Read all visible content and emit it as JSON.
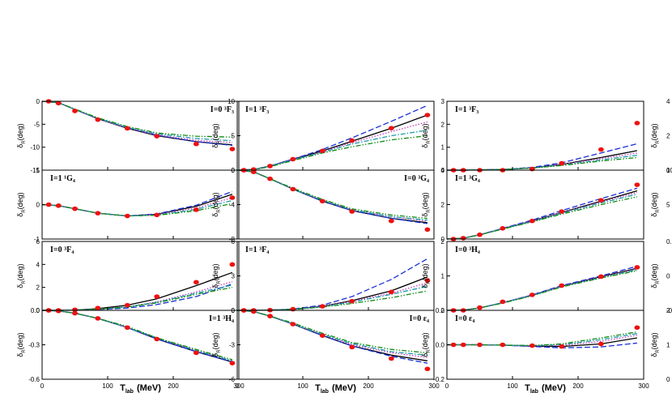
{
  "chart_data": {
    "type": "line",
    "xlabel_main": "T",
    "xlabel_sub": "lab",
    "xlabel_unit": "(MeV)",
    "ylabel_main": "δ",
    "ylabel_sub": "R",
    "ylabel_unit": "(deg)",
    "x_ticks": [
      "0",
      "100",
      "200",
      "300"
    ],
    "xlim": [
      0,
      300
    ],
    "series_styles": [
      {
        "id": "solid",
        "color": "#000000",
        "dash": ""
      },
      {
        "id": "dash",
        "color": "#1a2fd6",
        "dash": "7,3"
      },
      {
        "id": "dot",
        "color": "#c23fbf",
        "dash": "1.5,2"
      },
      {
        "id": "dashdot",
        "color": "#1c9ba6",
        "dash": "6,2,1.5,2"
      },
      {
        "id": "dashdotdot",
        "color": "#138a13",
        "dash": "6,2,1.5,2,1.5,2"
      }
    ],
    "point_color": "#ee1111",
    "panels": [
      {
        "row": 0,
        "col": 0,
        "label": "I=0 ³F₃",
        "label_pos": "right",
        "ylim": [
          -15,
          0
        ],
        "y_ticks": [
          "-15",
          "-10",
          "-5",
          "0"
        ],
        "points_x": [
          10,
          25,
          50,
          85,
          130,
          175,
          235,
          290
        ],
        "points_y": [
          0,
          -0.4,
          -2.1,
          -4.0,
          -5.9,
          -7.6,
          -9.3,
          -10.4
        ],
        "curves": {
          "solid": [
            0,
            -0.3,
            -1.8,
            -3.8,
            -5.9,
            -7.5,
            -8.8,
            -9.5
          ],
          "dash": [
            0,
            -0.3,
            -1.8,
            -3.8,
            -5.8,
            -7.4,
            -8.8,
            -9.6
          ],
          "dot": [
            0,
            -0.3,
            -1.8,
            -3.8,
            -5.8,
            -7.3,
            -8.5,
            -9.0
          ],
          "dashdot": [
            0,
            -0.3,
            -1.8,
            -3.7,
            -5.7,
            -7.1,
            -8.1,
            -8.6
          ],
          "dashdotdot": [
            0,
            -0.3,
            -1.7,
            -3.6,
            -5.5,
            -6.9,
            -7.6,
            -7.8
          ]
        }
      },
      {
        "row": 0,
        "col": 1,
        "label": "I=1 ³F₃",
        "label_pos": "left",
        "ylim": [
          0,
          10
        ],
        "y_ticks": [
          "0",
          "5",
          "10"
        ],
        "points_x": [
          10,
          25,
          50,
          85,
          130,
          175,
          235,
          290
        ],
        "points_y": [
          0,
          0.1,
          0.6,
          1.6,
          2.8,
          4.3,
          6.1,
          8.0
        ],
        "curves": {
          "solid": [
            0,
            0.1,
            0.6,
            1.6,
            2.8,
            4.2,
            6.1,
            8.0
          ],
          "dash": [
            0,
            0.1,
            0.6,
            1.6,
            3.0,
            4.7,
            7.1,
            9.4
          ],
          "dot": [
            0,
            0.1,
            0.6,
            1.5,
            2.7,
            4.0,
            5.6,
            7.0
          ],
          "dashdot": [
            0,
            0.1,
            0.6,
            1.5,
            2.6,
            3.8,
            5.0,
            5.8
          ],
          "dashdotdot": [
            0,
            0.1,
            0.5,
            1.4,
            2.5,
            3.4,
            4.4,
            5.0
          ]
        }
      },
      {
        "row": 0,
        "col": 2,
        "label": "I=1 ³F₃",
        "label_pos": "left",
        "ylim": [
          0,
          3
        ],
        "y_ticks": [
          "0",
          "1",
          "2",
          "3"
        ],
        "points_x": [
          10,
          25,
          50,
          85,
          130,
          175,
          235,
          290
        ],
        "points_y": [
          0,
          0,
          0,
          0,
          0.05,
          0.3,
          0.9,
          2.05
        ],
        "curves": {
          "solid": [
            0,
            0,
            0.01,
            0.03,
            0.1,
            0.25,
            0.55,
            0.85
          ],
          "dash": [
            0,
            0,
            0.01,
            0.03,
            0.12,
            0.32,
            0.75,
            1.15
          ],
          "dot": [
            0,
            0,
            0.01,
            0.03,
            0.1,
            0.25,
            0.5,
            0.75
          ],
          "dashdot": [
            0,
            0,
            0.01,
            0.03,
            0.1,
            0.22,
            0.45,
            0.65
          ],
          "dashdotdot": [
            0,
            0,
            0.01,
            0.03,
            0.09,
            0.2,
            0.4,
            0.55
          ]
        }
      },
      {
        "row": 1,
        "col": 0,
        "label": "I=1 ¹G₄",
        "label_pos": "left",
        "ylim": [
          -1,
          1
        ],
        "y_ticks": [
          "-1",
          "0",
          "1"
        ],
        "points_x": [
          10,
          25,
          50,
          85,
          130,
          175,
          235,
          290
        ],
        "points_y": [
          0,
          -0.03,
          -0.12,
          -0.25,
          -0.33,
          -0.3,
          -0.15,
          0.2
        ],
        "curves": {
          "solid": [
            0,
            -0.03,
            -0.12,
            -0.25,
            -0.33,
            -0.28,
            -0.05,
            0.3
          ],
          "dash": [
            0,
            -0.03,
            -0.12,
            -0.25,
            -0.33,
            -0.27,
            -0.02,
            0.38
          ],
          "dot": [
            0,
            -0.03,
            -0.12,
            -0.25,
            -0.33,
            -0.29,
            -0.1,
            0.2
          ],
          "dashdot": [
            0,
            -0.03,
            -0.12,
            -0.25,
            -0.33,
            -0.3,
            -0.14,
            0.12
          ],
          "dashdotdot": [
            0,
            -0.03,
            -0.12,
            -0.25,
            -0.33,
            -0.31,
            -0.18,
            0.03
          ]
        }
      },
      {
        "row": 1,
        "col": 1,
        "label": "I=0 ³G₄",
        "label_pos": "right",
        "ylim": [
          -8,
          0
        ],
        "y_ticks": [
          "-8",
          "-4",
          "0"
        ],
        "points_x": [
          10,
          25,
          50,
          85,
          130,
          175,
          235,
          290
        ],
        "points_y": [
          0,
          -0.2,
          -1.0,
          -2.2,
          -3.6,
          -4.8,
          -5.9,
          -6.9
        ],
        "curves": {
          "solid": [
            0,
            -0.2,
            -1.0,
            -2.2,
            -3.6,
            -4.7,
            -5.6,
            -6.1
          ],
          "dash": [
            0,
            -0.2,
            -1.0,
            -2.2,
            -3.6,
            -4.7,
            -5.6,
            -6.2
          ],
          "dot": [
            0,
            -0.2,
            -1.0,
            -2.2,
            -3.5,
            -4.6,
            -5.4,
            -5.9
          ],
          "dashdot": [
            0,
            -0.2,
            -1.0,
            -2.2,
            -3.5,
            -4.6,
            -5.4,
            -5.8
          ],
          "dashdotdot": [
            0,
            -0.2,
            -1.0,
            -2.1,
            -3.4,
            -4.5,
            -5.2,
            -5.6
          ]
        }
      },
      {
        "row": 1,
        "col": 2,
        "label": "I=1 ³G₄",
        "label_pos": "left",
        "ylim": [
          0,
          4
        ],
        "y_ticks": [
          "0",
          "2",
          "4"
        ],
        "points_x": [
          10,
          25,
          50,
          85,
          130,
          175,
          235,
          290
        ],
        "points_y": [
          0,
          0.05,
          0.25,
          0.62,
          1.05,
          1.6,
          2.25,
          3.15
        ],
        "curves": {
          "solid": [
            0,
            0.05,
            0.25,
            0.6,
            1.05,
            1.55,
            2.2,
            2.8
          ],
          "dash": [
            0,
            0.05,
            0.25,
            0.62,
            1.1,
            1.65,
            2.35,
            2.95
          ],
          "dot": [
            0,
            0.05,
            0.25,
            0.6,
            1.05,
            1.55,
            2.15,
            2.7
          ],
          "dashdot": [
            0,
            0.05,
            0.25,
            0.6,
            1.02,
            1.5,
            2.1,
            2.6
          ],
          "dashdotdot": [
            0,
            0.05,
            0.24,
            0.58,
            1.0,
            1.45,
            2.0,
            2.45
          ]
        }
      },
      {
        "row": 2,
        "col": 0,
        "label": "I=0 ³F₄",
        "label_pos": "left",
        "ylim": [
          0,
          6
        ],
        "y_ticks": [
          "0",
          "2",
          "4",
          "6"
        ],
        "points_x": [
          10,
          25,
          50,
          85,
          130,
          175,
          235,
          290
        ],
        "points_y": [
          0,
          0,
          0.05,
          0.2,
          0.45,
          1.2,
          2.45,
          4.0
        ],
        "curves": {
          "solid": [
            0,
            0,
            0.03,
            0.15,
            0.45,
            1.0,
            2.15,
            3.3
          ],
          "dash": [
            0,
            0,
            0.02,
            0.08,
            0.2,
            0.5,
            1.2,
            2.3
          ],
          "dot": [
            0,
            0,
            0.02,
            0.1,
            0.3,
            0.75,
            1.6,
            2.5
          ],
          "dashdot": [
            0,
            0,
            0.02,
            0.1,
            0.3,
            0.7,
            1.5,
            2.2
          ],
          "dashdotdot": [
            0,
            0,
            0.02,
            0.1,
            0.3,
            0.65,
            1.4,
            2.0
          ]
        }
      },
      {
        "row": 2,
        "col": 1,
        "label": "I=1 ³F₄",
        "label_pos": "left",
        "ylim": [
          0,
          6
        ],
        "y_ticks": [
          "0",
          "3",
          "6"
        ],
        "points_x": [
          10,
          25,
          50,
          85,
          130,
          175,
          235,
          290
        ],
        "points_y": [
          0,
          0,
          0.02,
          0.1,
          0.35,
          0.8,
          1.6,
          2.6
        ],
        "curves": {
          "solid": [
            0,
            0,
            0.02,
            0.1,
            0.35,
            0.85,
            1.7,
            2.9
          ],
          "dash": [
            0,
            0,
            0.02,
            0.12,
            0.45,
            1.2,
            2.7,
            4.5
          ],
          "dot": [
            0,
            0,
            0.02,
            0.1,
            0.35,
            0.8,
            1.5,
            2.4
          ],
          "dashdot": [
            0,
            0,
            0.02,
            0.1,
            0.32,
            0.72,
            1.4,
            2.1
          ],
          "dashdotdot": [
            0,
            0,
            0.02,
            0.08,
            0.28,
            0.6,
            1.1,
            1.7
          ]
        }
      },
      {
        "row": 2,
        "col": 2,
        "label": "I=0 ³H₄",
        "label_pos": "left",
        "ylim": [
          0,
          2
        ],
        "y_ticks": [
          "0",
          "1",
          "2"
        ],
        "points_x": [
          10,
          25,
          50,
          85,
          130,
          175,
          235,
          290
        ],
        "points_y": [
          0,
          0,
          0.08,
          0.25,
          0.45,
          0.72,
          0.98,
          1.25
        ],
        "curves": {
          "solid": [
            0,
            0.01,
            0.07,
            0.22,
            0.44,
            0.7,
            0.98,
            1.22
          ],
          "dash": [
            0,
            0.01,
            0.07,
            0.22,
            0.45,
            0.72,
            1.0,
            1.28
          ],
          "dot": [
            0,
            0.01,
            0.07,
            0.22,
            0.44,
            0.7,
            0.97,
            1.2
          ],
          "dashdot": [
            0,
            0.01,
            0.07,
            0.22,
            0.43,
            0.69,
            0.95,
            1.18
          ],
          "dashdotdot": [
            0,
            0.01,
            0.07,
            0.21,
            0.42,
            0.68,
            0.94,
            1.15
          ]
        }
      },
      {
        "row": 3,
        "col": 0,
        "label": "I=1 ³H₄",
        "label_pos": "right",
        "ylim": [
          -0.6,
          0
        ],
        "y_ticks": [
          "-0.6",
          "-0.3",
          "0.0"
        ],
        "points_x": [
          10,
          25,
          50,
          85,
          130,
          175,
          235,
          290
        ],
        "points_y": [
          0,
          -0.005,
          -0.025,
          -0.07,
          -0.15,
          -0.25,
          -0.37,
          -0.46
        ],
        "curves": {
          "solid": [
            0,
            -0.005,
            -0.025,
            -0.07,
            -0.15,
            -0.25,
            -0.36,
            -0.45
          ],
          "dash": [
            0,
            -0.005,
            -0.025,
            -0.07,
            -0.15,
            -0.25,
            -0.36,
            -0.45
          ],
          "dot": [
            0,
            -0.005,
            -0.025,
            -0.07,
            -0.15,
            -0.24,
            -0.35,
            -0.44
          ],
          "dashdot": [
            0,
            -0.005,
            -0.025,
            -0.07,
            -0.15,
            -0.24,
            -0.35,
            -0.44
          ],
          "dashdotdot": [
            0,
            -0.005,
            -0.025,
            -0.07,
            -0.14,
            -0.24,
            -0.34,
            -0.43
          ]
        }
      },
      {
        "row": 3,
        "col": 1,
        "label": "I=0 ε₄",
        "label_pos": "right",
        "ylim": [
          -6,
          0
        ],
        "y_ticks": [
          "-6",
          "-3",
          "0"
        ],
        "points_x": [
          10,
          25,
          50,
          85,
          130,
          175,
          235,
          290
        ],
        "points_y": [
          0,
          -0.1,
          -0.5,
          -1.2,
          -2.2,
          -3.2,
          -4.2,
          -5.1
        ],
        "curves": {
          "solid": [
            0,
            -0.1,
            -0.5,
            -1.2,
            -2.2,
            -3.1,
            -3.9,
            -4.4
          ],
          "dash": [
            0,
            -0.1,
            -0.5,
            -1.2,
            -2.2,
            -3.1,
            -4.0,
            -4.6
          ],
          "dot": [
            0,
            -0.1,
            -0.5,
            -1.2,
            -2.1,
            -3.0,
            -3.7,
            -4.1
          ],
          "dashdot": [
            0,
            -0.1,
            -0.5,
            -1.2,
            -2.1,
            -2.9,
            -3.6,
            -3.9
          ],
          "dashdotdot": [
            0,
            -0.1,
            -0.5,
            -1.1,
            -2.0,
            -2.8,
            -3.4,
            -3.7
          ]
        }
      },
      {
        "row": 3,
        "col": 2,
        "label": "I=0 ε₄",
        "label_pos": "left",
        "ylim": [
          -0.2,
          0.2
        ],
        "y_ticks": [
          "-0.2",
          "0.0",
          "0.2"
        ],
        "points_x": [
          10,
          25,
          50,
          85,
          130,
          175,
          235,
          290
        ],
        "points_y": [
          0,
          0,
          0,
          0,
          -0.005,
          -0.01,
          0.005,
          0.1
        ],
        "curves": {
          "solid": [
            0,
            0,
            0,
            -0.002,
            -0.008,
            -0.01,
            0.005,
            0.04
          ],
          "dash": [
            0,
            0,
            0,
            -0.002,
            -0.01,
            -0.018,
            -0.012,
            0.01
          ],
          "dot": [
            0,
            0,
            0,
            -0.002,
            -0.006,
            -0.004,
            0.02,
            0.055
          ],
          "dashdot": [
            0,
            0,
            0,
            -0.002,
            -0.005,
            0.0,
            0.03,
            0.065
          ],
          "dashdotdot": [
            0,
            0,
            0,
            -0.002,
            -0.004,
            0.005,
            0.04,
            0.075
          ]
        }
      }
    ],
    "partial_right_ticks": [
      {
        "row": 0,
        "top": "4",
        "mid": "2",
        "bottom": "0"
      },
      {
        "row": 1,
        "top": "10",
        "mid": "5",
        "bottom": ""
      },
      {
        "row": 2,
        "top": "0.1",
        "mid": "0",
        "bottom": "-0.1"
      },
      {
        "row": 3,
        "top": "2",
        "mid": "1",
        "bottom": "0"
      }
    ]
  }
}
